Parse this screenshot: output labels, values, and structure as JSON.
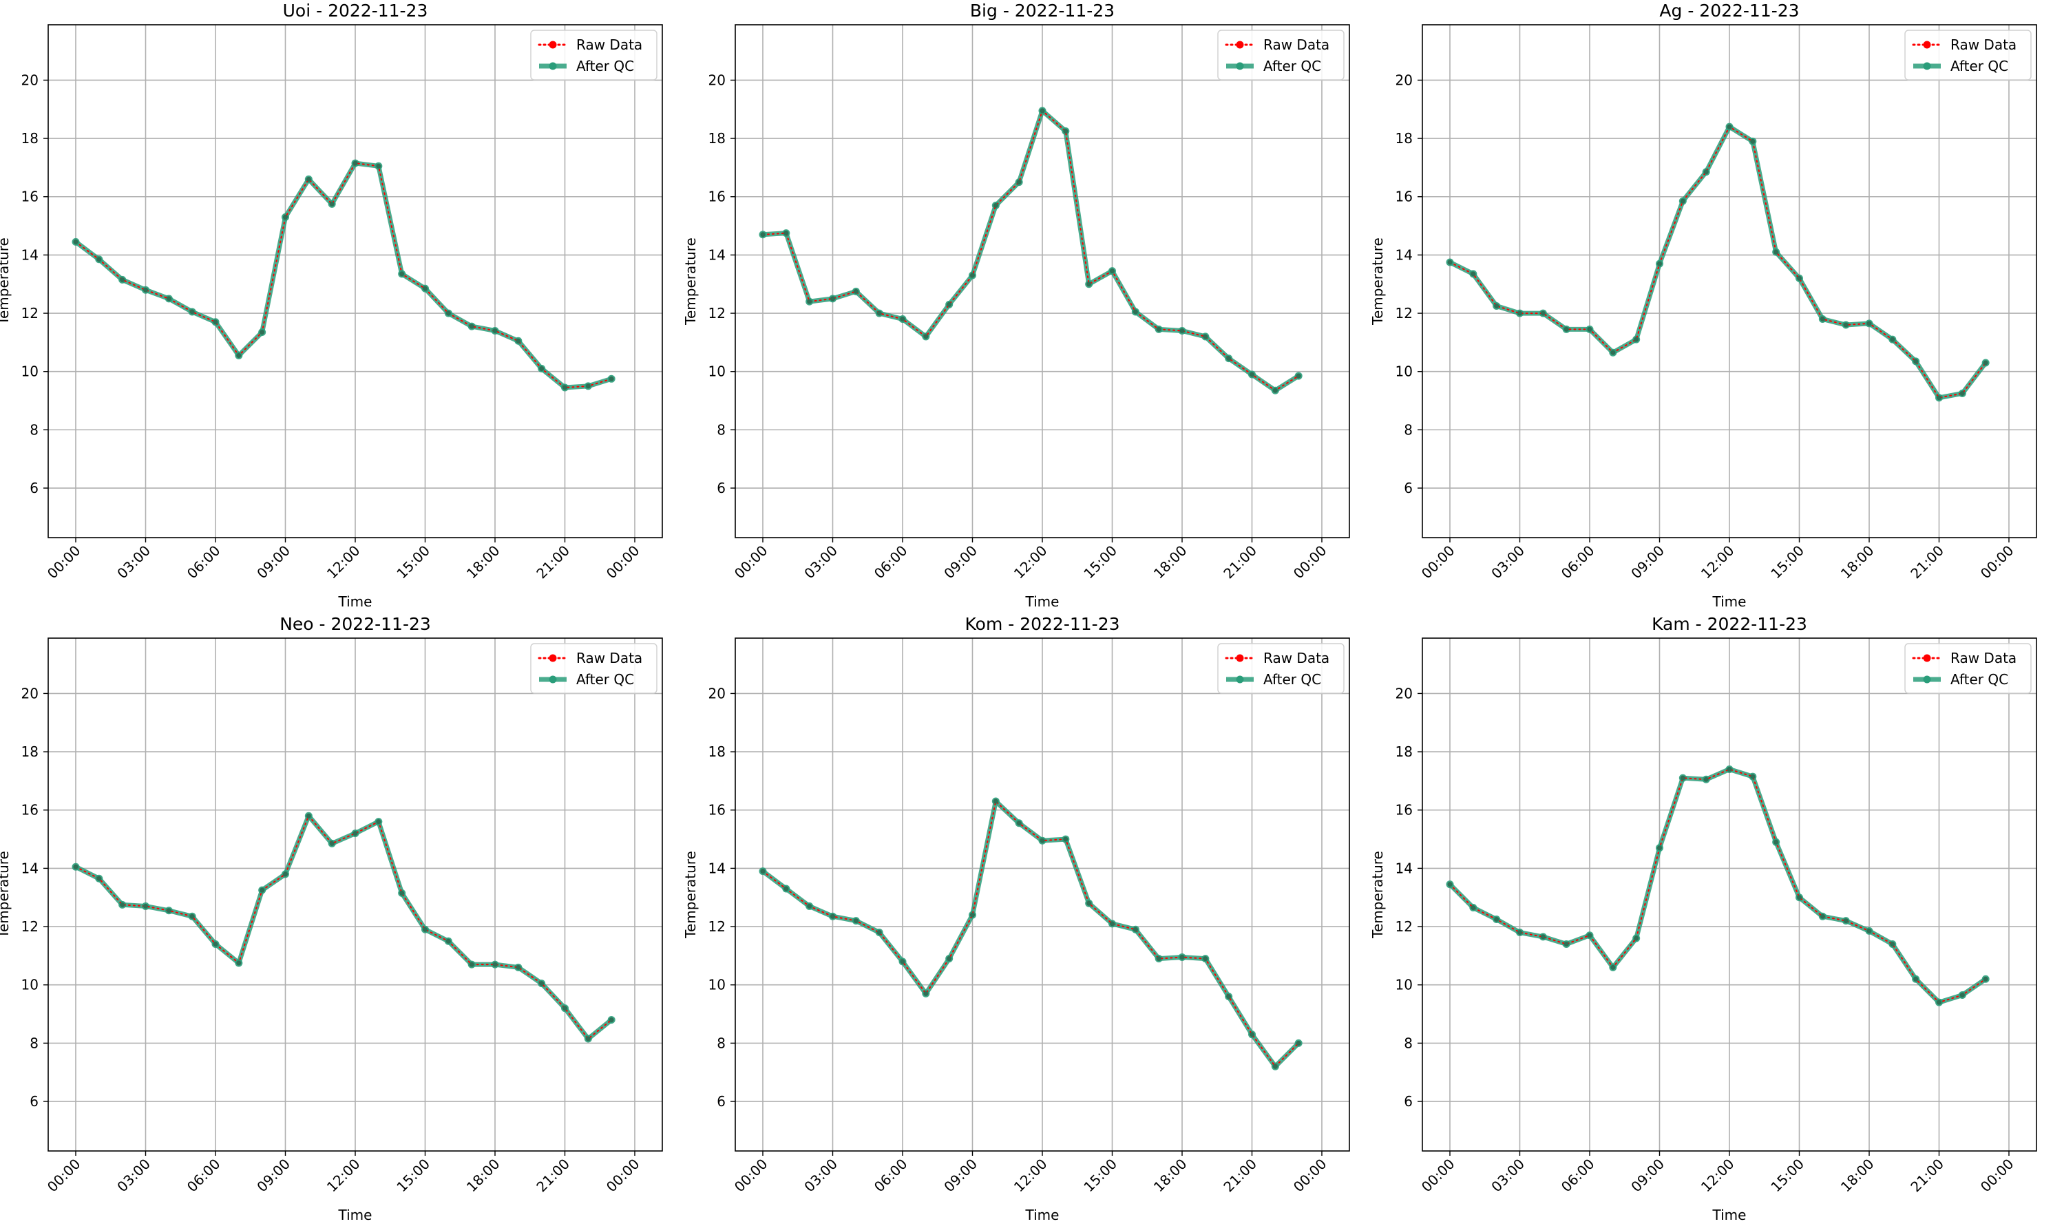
{
  "chart_data": [
    {
      "type": "line",
      "title": "Uoi - 2022-11-23",
      "xlabel": "Time",
      "ylabel": "Temperature",
      "x": [
        "00:00",
        "01:00",
        "02:00",
        "03:00",
        "04:00",
        "05:00",
        "06:00",
        "07:00",
        "08:00",
        "09:00",
        "10:00",
        "11:00",
        "12:00",
        "13:00",
        "14:00",
        "15:00",
        "16:00",
        "17:00",
        "18:00",
        "19:00",
        "20:00",
        "21:00",
        "22:00",
        "23:00"
      ],
      "xticks": [
        "00:00",
        "03:00",
        "06:00",
        "09:00",
        "12:00",
        "15:00",
        "18:00",
        "21:00",
        "00:00"
      ],
      "yticks": [
        6,
        8,
        10,
        12,
        14,
        16,
        18,
        20
      ],
      "ylim": [
        4.3,
        21.9
      ],
      "grid": true,
      "legend": "top-right",
      "series": [
        {
          "name": "Raw Data",
          "color": "#ff0000",
          "values": [
            14.45,
            13.85,
            13.15,
            12.8,
            12.5,
            12.05,
            11.7,
            10.55,
            11.35,
            15.3,
            16.6,
            15.75,
            17.15,
            17.05,
            13.35,
            12.85,
            12.0,
            11.55,
            11.4,
            11.05,
            10.1,
            9.45,
            9.5,
            9.75
          ]
        },
        {
          "name": "After QC",
          "color": "#2a9d7a",
          "values": [
            14.45,
            13.85,
            13.15,
            12.8,
            12.5,
            12.05,
            11.7,
            10.55,
            11.35,
            15.3,
            16.6,
            15.75,
            17.15,
            17.05,
            13.35,
            12.85,
            12.0,
            11.55,
            11.4,
            11.05,
            10.1,
            9.45,
            9.5,
            9.75
          ]
        }
      ]
    },
    {
      "type": "line",
      "title": "Big - 2022-11-23",
      "xlabel": "Time",
      "ylabel": "Temperature",
      "x": [
        "00:00",
        "01:00",
        "02:00",
        "03:00",
        "04:00",
        "05:00",
        "06:00",
        "07:00",
        "08:00",
        "09:00",
        "10:00",
        "11:00",
        "12:00",
        "13:00",
        "14:00",
        "15:00",
        "16:00",
        "17:00",
        "18:00",
        "19:00",
        "20:00",
        "21:00",
        "22:00",
        "23:00"
      ],
      "xticks": [
        "00:00",
        "03:00",
        "06:00",
        "09:00",
        "12:00",
        "15:00",
        "18:00",
        "21:00",
        "00:00"
      ],
      "yticks": [
        6,
        8,
        10,
        12,
        14,
        16,
        18,
        20
      ],
      "ylim": [
        4.3,
        21.9
      ],
      "grid": true,
      "legend": "top-right",
      "series": [
        {
          "name": "Raw Data",
          "color": "#ff0000",
          "values": [
            14.7,
            14.75,
            12.4,
            12.5,
            12.75,
            12.0,
            11.8,
            11.2,
            12.3,
            13.3,
            15.7,
            16.5,
            18.95,
            18.25,
            13.0,
            13.45,
            12.05,
            11.45,
            11.4,
            11.2,
            10.45,
            9.9,
            9.35,
            9.85
          ]
        },
        {
          "name": "After QC",
          "color": "#2a9d7a",
          "values": [
            14.7,
            14.75,
            12.4,
            12.5,
            12.75,
            12.0,
            11.8,
            11.2,
            12.3,
            13.3,
            15.7,
            16.5,
            18.95,
            18.25,
            13.0,
            13.45,
            12.05,
            11.45,
            11.4,
            11.2,
            10.45,
            9.9,
            9.35,
            9.85
          ]
        }
      ]
    },
    {
      "type": "line",
      "title": "Ag - 2022-11-23",
      "xlabel": "Time",
      "ylabel": "Temperature",
      "x": [
        "00:00",
        "01:00",
        "02:00",
        "03:00",
        "04:00",
        "05:00",
        "06:00",
        "07:00",
        "08:00",
        "09:00",
        "10:00",
        "11:00",
        "12:00",
        "13:00",
        "14:00",
        "15:00",
        "16:00",
        "17:00",
        "18:00",
        "19:00",
        "20:00",
        "21:00",
        "22:00",
        "23:00"
      ],
      "xticks": [
        "00:00",
        "03:00",
        "06:00",
        "09:00",
        "12:00",
        "15:00",
        "18:00",
        "21:00",
        "00:00"
      ],
      "yticks": [
        6,
        8,
        10,
        12,
        14,
        16,
        18,
        20
      ],
      "ylim": [
        4.3,
        21.9
      ],
      "grid": true,
      "legend": "top-right",
      "series": [
        {
          "name": "Raw Data",
          "color": "#ff0000",
          "values": [
            13.75,
            13.35,
            12.25,
            12.0,
            12.0,
            11.45,
            11.45,
            10.65,
            11.1,
            13.7,
            15.85,
            16.85,
            18.4,
            17.9,
            14.1,
            13.2,
            11.8,
            11.6,
            11.65,
            11.1,
            10.35,
            9.1,
            9.25,
            10.3
          ]
        },
        {
          "name": "After QC",
          "color": "#2a9d7a",
          "values": [
            13.75,
            13.35,
            12.25,
            12.0,
            12.0,
            11.45,
            11.45,
            10.65,
            11.1,
            13.7,
            15.85,
            16.85,
            18.4,
            17.9,
            14.1,
            13.2,
            11.8,
            11.6,
            11.65,
            11.1,
            10.35,
            9.1,
            9.25,
            10.3
          ]
        }
      ]
    },
    {
      "type": "line",
      "title": "Neo - 2022-11-23",
      "xlabel": "Time",
      "ylabel": "Temperature",
      "x": [
        "00:00",
        "01:00",
        "02:00",
        "03:00",
        "04:00",
        "05:00",
        "06:00",
        "07:00",
        "08:00",
        "09:00",
        "10:00",
        "11:00",
        "12:00",
        "13:00",
        "14:00",
        "15:00",
        "16:00",
        "17:00",
        "18:00",
        "19:00",
        "20:00",
        "21:00",
        "22:00",
        "23:00"
      ],
      "xticks": [
        "00:00",
        "03:00",
        "06:00",
        "09:00",
        "12:00",
        "15:00",
        "18:00",
        "21:00",
        "00:00"
      ],
      "yticks": [
        6,
        8,
        10,
        12,
        14,
        16,
        18,
        20
      ],
      "ylim": [
        4.3,
        21.9
      ],
      "grid": true,
      "legend": "top-right",
      "series": [
        {
          "name": "Raw Data",
          "color": "#ff0000",
          "values": [
            14.05,
            13.65,
            12.75,
            12.7,
            12.55,
            12.35,
            11.4,
            10.75,
            13.25,
            13.8,
            15.8,
            14.85,
            15.2,
            15.6,
            13.15,
            11.9,
            11.5,
            10.7,
            10.7,
            10.6,
            10.05,
            9.2,
            8.15,
            8.8
          ]
        },
        {
          "name": "After QC",
          "color": "#2a9d7a",
          "values": [
            14.05,
            13.65,
            12.75,
            12.7,
            12.55,
            12.35,
            11.4,
            10.75,
            13.25,
            13.8,
            15.8,
            14.85,
            15.2,
            15.6,
            13.15,
            11.9,
            11.5,
            10.7,
            10.7,
            10.6,
            10.05,
            9.2,
            8.15,
            8.8
          ]
        }
      ]
    },
    {
      "type": "line",
      "title": "Kom - 2022-11-23",
      "xlabel": "Time",
      "ylabel": "Temperature",
      "x": [
        "00:00",
        "01:00",
        "02:00",
        "03:00",
        "04:00",
        "05:00",
        "06:00",
        "07:00",
        "08:00",
        "09:00",
        "10:00",
        "11:00",
        "12:00",
        "13:00",
        "14:00",
        "15:00",
        "16:00",
        "17:00",
        "18:00",
        "19:00",
        "20:00",
        "21:00",
        "22:00",
        "23:00"
      ],
      "xticks": [
        "00:00",
        "03:00",
        "06:00",
        "09:00",
        "12:00",
        "15:00",
        "18:00",
        "21:00",
        "00:00"
      ],
      "yticks": [
        6,
        8,
        10,
        12,
        14,
        16,
        18,
        20
      ],
      "ylim": [
        4.3,
        21.9
      ],
      "grid": true,
      "legend": "top-right",
      "series": [
        {
          "name": "Raw Data",
          "color": "#ff0000",
          "values": [
            13.9,
            13.3,
            12.7,
            12.35,
            12.2,
            11.8,
            10.8,
            9.7,
            10.9,
            12.4,
            16.3,
            15.55,
            14.95,
            15.0,
            12.8,
            12.1,
            11.9,
            10.9,
            10.95,
            10.9,
            9.6,
            8.3,
            7.2,
            8.0
          ]
        },
        {
          "name": "After QC",
          "color": "#2a9d7a",
          "values": [
            13.9,
            13.3,
            12.7,
            12.35,
            12.2,
            11.8,
            10.8,
            9.7,
            10.9,
            12.4,
            16.3,
            15.55,
            14.95,
            15.0,
            12.8,
            12.1,
            11.9,
            10.9,
            10.95,
            10.9,
            9.6,
            8.3,
            7.2,
            8.0
          ]
        }
      ]
    },
    {
      "type": "line",
      "title": "Kam - 2022-11-23",
      "xlabel": "Time",
      "ylabel": "Temperature",
      "x": [
        "00:00",
        "01:00",
        "02:00",
        "03:00",
        "04:00",
        "05:00",
        "06:00",
        "07:00",
        "08:00",
        "09:00",
        "10:00",
        "11:00",
        "12:00",
        "13:00",
        "14:00",
        "15:00",
        "16:00",
        "17:00",
        "18:00",
        "19:00",
        "20:00",
        "21:00",
        "22:00",
        "23:00"
      ],
      "xticks": [
        "00:00",
        "03:00",
        "06:00",
        "09:00",
        "12:00",
        "15:00",
        "18:00",
        "21:00",
        "00:00"
      ],
      "yticks": [
        6,
        8,
        10,
        12,
        14,
        16,
        18,
        20
      ],
      "ylim": [
        4.3,
        21.9
      ],
      "grid": true,
      "legend": "top-right",
      "series": [
        {
          "name": "Raw Data",
          "color": "#ff0000",
          "values": [
            13.45,
            12.65,
            12.25,
            11.8,
            11.65,
            11.4,
            11.7,
            10.6,
            11.6,
            14.7,
            17.1,
            17.05,
            17.4,
            17.15,
            14.9,
            13.0,
            12.35,
            12.2,
            11.85,
            11.4,
            10.2,
            9.4,
            9.65,
            10.2
          ]
        },
        {
          "name": "After QC",
          "color": "#2a9d7a",
          "values": [
            13.45,
            12.65,
            12.25,
            11.8,
            11.65,
            11.4,
            11.7,
            10.6,
            11.6,
            14.7,
            17.1,
            17.05,
            17.4,
            17.15,
            14.9,
            13.0,
            12.35,
            12.2,
            11.85,
            11.4,
            10.2,
            9.4,
            9.65,
            10.2
          ]
        }
      ]
    }
  ]
}
